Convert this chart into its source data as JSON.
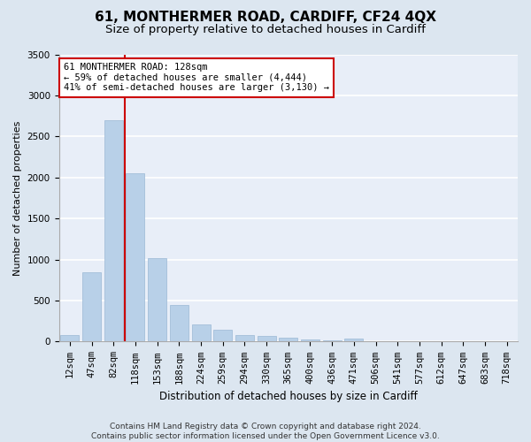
{
  "title": "61, MONTHERMER ROAD, CARDIFF, CF24 4QX",
  "subtitle": "Size of property relative to detached houses in Cardiff",
  "xlabel": "Distribution of detached houses by size in Cardiff",
  "ylabel": "Number of detached properties",
  "bar_labels": [
    "12sqm",
    "47sqm",
    "82sqm",
    "118sqm",
    "153sqm",
    "188sqm",
    "224sqm",
    "259sqm",
    "294sqm",
    "330sqm",
    "365sqm",
    "400sqm",
    "436sqm",
    "471sqm",
    "506sqm",
    "541sqm",
    "577sqm",
    "612sqm",
    "647sqm",
    "683sqm",
    "718sqm"
  ],
  "bar_heights": [
    75,
    850,
    2700,
    2050,
    1020,
    450,
    210,
    150,
    80,
    65,
    50,
    30,
    20,
    35,
    10,
    5,
    0,
    0,
    0,
    0,
    0
  ],
  "bar_color": "#b8d0e8",
  "bar_edge_color": "#9ab8d4",
  "property_bin_index": 3,
  "vline_color": "#cc0000",
  "annotation_text": "61 MONTHERMER ROAD: 128sqm\n← 59% of detached houses are smaller (4,444)\n41% of semi-detached houses are larger (3,130) →",
  "annotation_box_facecolor": "white",
  "annotation_box_edgecolor": "#cc0000",
  "ylim": [
    0,
    3500
  ],
  "yticks": [
    0,
    500,
    1000,
    1500,
    2000,
    2500,
    3000,
    3500
  ],
  "footer": "Contains HM Land Registry data © Crown copyright and database right 2024.\nContains public sector information licensed under the Open Government Licence v3.0.",
  "bg_color": "#dce6f0",
  "plot_bg_color": "#e8eef8",
  "grid_color": "white",
  "title_fontsize": 11,
  "subtitle_fontsize": 9.5,
  "xlabel_fontsize": 8.5,
  "ylabel_fontsize": 8,
  "tick_fontsize": 7.5,
  "footer_fontsize": 6.5,
  "annotation_fontsize": 7.5
}
